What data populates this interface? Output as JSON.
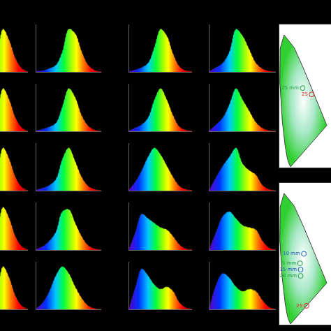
{
  "chart_data": [
    {
      "type": "area",
      "x": [
        380,
        420,
        460,
        500,
        540,
        580,
        620,
        660,
        700,
        740,
        780
      ],
      "values": [
        0,
        0,
        0.02,
        0.05,
        0.15,
        0.45,
        0.95,
        0.7,
        0.3,
        0.08,
        0.01
      ],
      "xlim": [
        600,
        780
      ],
      "ylim": [
        0,
        1.05
      ],
      "tick_labels": false
    },
    {
      "type": "area",
      "x": [
        380,
        420,
        460,
        500,
        540,
        580,
        620,
        660,
        700,
        740,
        780
      ],
      "values": [
        0.02,
        0.03,
        0.08,
        0.15,
        0.45,
        0.95,
        0.85,
        0.45,
        0.15,
        0.04,
        0.01
      ],
      "xlim": [
        380,
        780
      ],
      "ylim": [
        0,
        1.05
      ],
      "tick_labels": false
    },
    {
      "type": "area",
      "x": [
        380,
        420,
        460,
        500,
        540,
        580,
        620,
        660,
        700,
        740,
        780
      ],
      "values": [
        0.02,
        0.05,
        0.1,
        0.2,
        0.55,
        0.95,
        0.8,
        0.4,
        0.12,
        0.03,
        0.02
      ],
      "xlim": [
        380,
        780
      ],
      "ylim": [
        0,
        1.05
      ],
      "tick_labels": false
    },
    {
      "type": "area",
      "x": [
        380,
        420,
        460,
        500,
        540,
        580,
        620,
        660,
        700,
        740,
        780
      ],
      "values": [
        0.02,
        0.1,
        0.2,
        0.45,
        0.95,
        0.8,
        0.5,
        0.2,
        0.07,
        0.02,
        0.01
      ],
      "xlim": [
        380,
        780
      ],
      "ylim": [
        0,
        1.05
      ],
      "tick_labels": false
    },
    {
      "type": "area",
      "x": [
        380,
        420,
        460,
        500,
        540,
        580,
        620,
        660,
        700,
        740,
        780
      ],
      "values": [
        0,
        0,
        0.02,
        0.05,
        0.15,
        0.45,
        0.95,
        0.7,
        0.3,
        0.08,
        0.01
      ],
      "xlim": [
        600,
        780
      ],
      "ylim": [
        0,
        1.05
      ],
      "tick_labels": false
    },
    {
      "type": "area",
      "x": [
        380,
        420,
        460,
        500,
        540,
        580,
        620,
        660,
        700,
        740,
        780
      ],
      "values": [
        0.02,
        0.05,
        0.1,
        0.18,
        0.55,
        0.95,
        0.75,
        0.35,
        0.12,
        0.03,
        0.01
      ],
      "xlim": [
        380,
        780
      ],
      "ylim": [
        0,
        1.05
      ],
      "tick_labels": false
    },
    {
      "type": "area",
      "x": [
        380,
        420,
        460,
        500,
        540,
        580,
        620,
        660,
        700,
        740,
        780
      ],
      "values": [
        0.02,
        0.08,
        0.15,
        0.3,
        0.7,
        0.95,
        0.7,
        0.35,
        0.1,
        0.03,
        0.01
      ],
      "xlim": [
        380,
        780
      ],
      "ylim": [
        0,
        1.05
      ],
      "tick_labels": false
    },
    {
      "type": "area",
      "x": [
        380,
        420,
        460,
        500,
        540,
        580,
        620,
        660,
        700,
        740,
        780
      ],
      "values": [
        0.02,
        0.15,
        0.3,
        0.6,
        0.95,
        0.7,
        0.45,
        0.2,
        0.07,
        0.02,
        0.01
      ],
      "xlim": [
        380,
        780
      ],
      "ylim": [
        0,
        1.05
      ],
      "tick_labels": false
    },
    {
      "type": "area",
      "x": [
        380,
        420,
        460,
        500,
        540,
        580,
        620,
        660,
        700,
        740,
        780
      ],
      "values": [
        0,
        0,
        0.02,
        0.05,
        0.15,
        0.45,
        0.95,
        0.7,
        0.3,
        0.08,
        0.01
      ],
      "xlim": [
        600,
        780
      ],
      "ylim": [
        0,
        1.05
      ],
      "tick_labels": false
    },
    {
      "type": "area",
      "x": [
        380,
        420,
        460,
        500,
        540,
        580,
        620,
        660,
        700,
        740,
        780
      ],
      "values": [
        0.02,
        0.06,
        0.12,
        0.25,
        0.7,
        0.95,
        0.65,
        0.3,
        0.1,
        0.03,
        0.01
      ],
      "xlim": [
        380,
        780
      ],
      "ylim": [
        0,
        1.05
      ],
      "tick_labels": false
    },
    {
      "type": "area",
      "x": [
        380,
        420,
        460,
        500,
        540,
        580,
        620,
        660,
        700,
        740,
        780
      ],
      "values": [
        0.03,
        0.2,
        0.45,
        0.75,
        0.95,
        0.8,
        0.55,
        0.3,
        0.1,
        0.03,
        0.01
      ],
      "xlim": [
        380,
        780
      ],
      "ylim": [
        0,
        1.05
      ],
      "tick_labels": false
    },
    {
      "type": "area",
      "x": [
        380,
        420,
        460,
        500,
        540,
        580,
        620,
        660,
        700,
        740,
        780
      ],
      "values": [
        0.03,
        0.3,
        0.55,
        0.75,
        0.95,
        0.6,
        0.45,
        0.35,
        0.12,
        0.03,
        0.01
      ],
      "xlim": [
        380,
        780
      ],
      "ylim": [
        0,
        1.05
      ],
      "tick_labels": false
    },
    {
      "type": "area",
      "x": [
        380,
        420,
        460,
        500,
        540,
        580,
        620,
        660,
        700,
        740,
        780
      ],
      "values": [
        0,
        0,
        0.02,
        0.05,
        0.15,
        0.45,
        0.95,
        0.7,
        0.3,
        0.08,
        0.01
      ],
      "xlim": [
        600,
        780
      ],
      "ylim": [
        0,
        1.05
      ],
      "tick_labels": false
    },
    {
      "type": "area",
      "x": [
        380,
        420,
        460,
        500,
        540,
        580,
        620,
        660,
        700,
        740,
        780
      ],
      "values": [
        0.02,
        0.08,
        0.2,
        0.4,
        0.85,
        0.9,
        0.6,
        0.3,
        0.1,
        0.03,
        0.01
      ],
      "xlim": [
        380,
        780
      ],
      "ylim": [
        0,
        1.05
      ],
      "tick_labels": false
    },
    {
      "type": "area",
      "x": [
        380,
        420,
        460,
        500,
        540,
        580,
        620,
        660,
        700,
        740,
        780
      ],
      "values": [
        0.03,
        0.4,
        0.8,
        0.7,
        0.6,
        0.5,
        0.45,
        0.3,
        0.12,
        0.03,
        0.01
      ],
      "xlim": [
        380,
        780
      ],
      "ylim": [
        0,
        1.05
      ],
      "tick_labels": false
    },
    {
      "type": "area",
      "x": [
        380,
        420,
        460,
        500,
        540,
        580,
        620,
        660,
        700,
        740,
        780
      ],
      "values": [
        0.03,
        0.4,
        0.75,
        0.85,
        0.7,
        0.55,
        0.5,
        0.45,
        0.2,
        0.05,
        0.01
      ],
      "xlim": [
        380,
        780
      ],
      "ylim": [
        0,
        1.05
      ],
      "tick_labels": false
    },
    {
      "type": "area",
      "x": [
        380,
        420,
        460,
        500,
        540,
        580,
        620,
        660,
        700,
        740,
        780
      ],
      "values": [
        0,
        0,
        0.02,
        0.05,
        0.15,
        0.45,
        0.95,
        0.7,
        0.3,
        0.08,
        0.01
      ],
      "xlim": [
        600,
        780
      ],
      "ylim": [
        0,
        1.05
      ],
      "tick_labels": false
    },
    {
      "type": "area",
      "x": [
        380,
        420,
        460,
        500,
        540,
        580,
        620,
        660,
        700,
        740,
        780
      ],
      "values": [
        0.02,
        0.15,
        0.4,
        0.75,
        0.95,
        0.8,
        0.5,
        0.25,
        0.08,
        0.02,
        0.01
      ],
      "xlim": [
        380,
        780
      ],
      "ylim": [
        0,
        1.05
      ],
      "tick_labels": false
    },
    {
      "type": "area",
      "x": [
        380,
        420,
        460,
        500,
        540,
        580,
        620,
        660,
        700,
        740,
        780
      ],
      "values": [
        0.03,
        0.5,
        0.9,
        0.75,
        0.55,
        0.45,
        0.5,
        0.4,
        0.15,
        0.04,
        0.01
      ],
      "xlim": [
        380,
        780
      ],
      "ylim": [
        0,
        1.05
      ],
      "tick_labels": false
    },
    {
      "type": "area",
      "x": [
        380,
        420,
        460,
        500,
        540,
        580,
        620,
        660,
        700,
        740,
        780
      ],
      "values": [
        0.03,
        0.55,
        0.8,
        0.7,
        0.5,
        0.4,
        0.45,
        0.4,
        0.2,
        0.05,
        0.01
      ],
      "xlim": [
        380,
        780
      ],
      "ylim": [
        0,
        1.05
      ],
      "tick_labels": false
    },
    {
      "type": "chromaticity",
      "locus": {
        "x": [
          0.174,
          0.144,
          0.124,
          0.091,
          0.045,
          0.008,
          0.014,
          0.074,
          0.23,
          0.373,
          0.512,
          0.627,
          0.691,
          0.735,
          0.174
        ],
        "y": [
          0.005,
          0.03,
          0.058,
          0.133,
          0.295,
          0.538,
          0.75,
          0.834,
          0.754,
          0.624,
          0.487,
          0.373,
          0.308,
          0.265,
          0.005
        ]
      },
      "points": {
        "x": [
          0.5,
          0.36
        ],
        "y": [
          0.46,
          0.5
        ],
        "labels": [
          "25",
          "25 mm"
        ],
        "colors": [
          "#e02020",
          "#20a040"
        ]
      },
      "xlim": [
        0,
        0.8
      ],
      "ylim": [
        0,
        0.9
      ],
      "tick_labels": false
    },
    {
      "type": "chromaticity",
      "locus": {
        "x": [
          0.174,
          0.144,
          0.124,
          0.091,
          0.045,
          0.008,
          0.014,
          0.074,
          0.23,
          0.373,
          0.512,
          0.627,
          0.691,
          0.735,
          0.174
        ],
        "y": [
          0.005,
          0.03,
          0.058,
          0.133,
          0.295,
          0.538,
          0.75,
          0.834,
          0.754,
          0.624,
          0.487,
          0.373,
          0.308,
          0.265,
          0.005
        ]
      },
      "points": {
        "x": [
          0.38,
          0.32,
          0.33,
          0.33,
          0.42
        ],
        "y": [
          0.45,
          0.39,
          0.35,
          0.31,
          0.12
        ],
        "labels": [
          "10 mm",
          "5 mm",
          "15 mm",
          "20 mm",
          "25"
        ],
        "colors": [
          "#2060c0",
          "#20a040",
          "#2060c0",
          "#20a040",
          "#e02020"
        ]
      },
      "xlim": [
        0,
        0.8
      ],
      "ylim": [
        0,
        0.9
      ],
      "tick_labels": false
    }
  ]
}
